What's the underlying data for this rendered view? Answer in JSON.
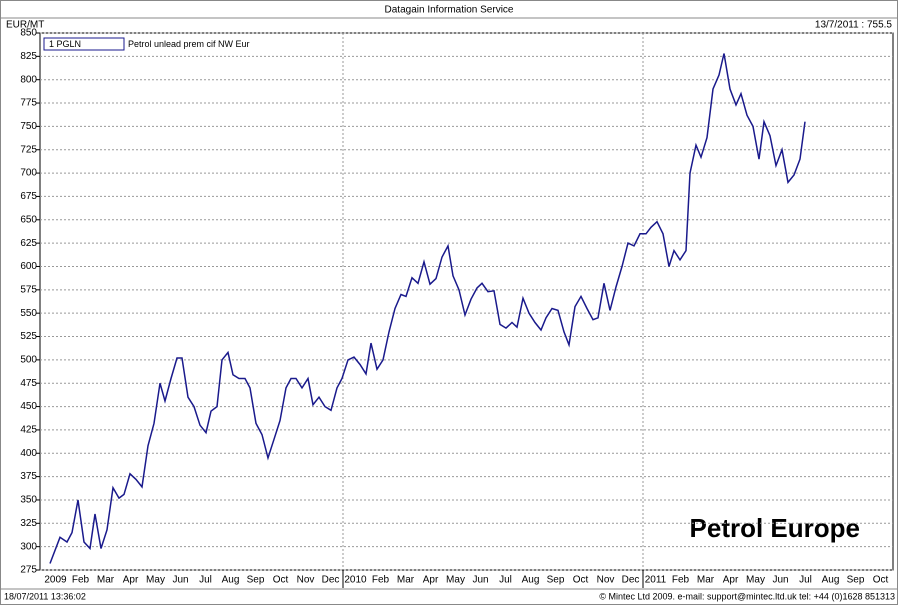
{
  "header": {
    "title": "Datagain Information Service",
    "unit": "EUR/MT",
    "last": "13/7/2011 :   755.5"
  },
  "footer": {
    "timestamp": "18/07/2011 13:36:02",
    "copyright": "© Mintec Ltd 2009. e-mail: support@mintec.ltd.uk tel: +44 (0)1628 851313"
  },
  "chart_data": {
    "type": "line",
    "annotation": "Petrol Europe",
    "legend": {
      "code": "1 PGLN"
    },
    "ylim": [
      275,
      850
    ],
    "yticks": [
      275,
      300,
      325,
      350,
      375,
      400,
      425,
      450,
      475,
      500,
      525,
      550,
      575,
      600,
      625,
      650,
      675,
      700,
      725,
      750,
      775,
      800,
      825,
      850
    ],
    "xlim": [
      0,
      34
    ],
    "xticks": [
      {
        "value": 0.5,
        "label": "2009"
      },
      {
        "value": 1.5,
        "label": "Feb"
      },
      {
        "value": 2.5,
        "label": "Mar"
      },
      {
        "value": 3.5,
        "label": "Apr"
      },
      {
        "value": 4.5,
        "label": "May"
      },
      {
        "value": 5.5,
        "label": "Jun"
      },
      {
        "value": 6.5,
        "label": "Jul"
      },
      {
        "value": 7.5,
        "label": "Aug"
      },
      {
        "value": 8.5,
        "label": "Sep"
      },
      {
        "value": 9.5,
        "label": "Oct"
      },
      {
        "value": 10.5,
        "label": "Nov"
      },
      {
        "value": 11.5,
        "label": "Dec"
      },
      {
        "value": 12.5,
        "label": "2010"
      },
      {
        "value": 13.5,
        "label": "Feb"
      },
      {
        "value": 14.5,
        "label": "Mar"
      },
      {
        "value": 15.5,
        "label": "Apr"
      },
      {
        "value": 16.5,
        "label": "May"
      },
      {
        "value": 17.5,
        "label": "Jun"
      },
      {
        "value": 18.5,
        "label": "Jul"
      },
      {
        "value": 19.5,
        "label": "Aug"
      },
      {
        "value": 20.5,
        "label": "Sep"
      },
      {
        "value": 21.5,
        "label": "Oct"
      },
      {
        "value": 22.5,
        "label": "Nov"
      },
      {
        "value": 23.5,
        "label": "Dec"
      },
      {
        "value": 24.5,
        "label": "2011"
      },
      {
        "value": 25.5,
        "label": "Feb"
      },
      {
        "value": 26.5,
        "label": "Mar"
      },
      {
        "value": 27.5,
        "label": "Apr"
      },
      {
        "value": 28.5,
        "label": "May"
      },
      {
        "value": 29.5,
        "label": "Jun"
      },
      {
        "value": 30.5,
        "label": "Jul"
      },
      {
        "value": 31.5,
        "label": "Aug"
      },
      {
        "value": 32.5,
        "label": "Sep"
      },
      {
        "value": 33.5,
        "label": "Oct"
      }
    ],
    "xgrid": [
      12,
      24
    ],
    "grid": true,
    "series": [
      {
        "name": "Petrol unlead prem cif NW Eur",
        "color": "#1a1a8c",
        "x": [
          0.28,
          0.68,
          0.96,
          1.16,
          1.4,
          1.64,
          1.88,
          2.08,
          2.32,
          2.56,
          2.8,
          3.04,
          3.24,
          3.48,
          3.72,
          3.96,
          4.2,
          4.44,
          4.68,
          4.88,
          5.12,
          5.36,
          5.56,
          5.8,
          6.04,
          6.28,
          6.52,
          6.72,
          6.96,
          7.16,
          7.4,
          7.6,
          7.84,
          8.08,
          8.28,
          8.52,
          8.76,
          9,
          9.24,
          9.48,
          9.72,
          9.92,
          10.12,
          10.36,
          10.6,
          10.8,
          11.04,
          11.28,
          11.52,
          11.76,
          11.96,
          12.2,
          12.44,
          12.68,
          12.92,
          13.12,
          13.36,
          13.6,
          13.84,
          14.08,
          14.32,
          14.52,
          14.76,
          15,
          15.24,
          15.48,
          15.72,
          15.96,
          16.2,
          16.4,
          16.64,
          16.88,
          17.12,
          17.36,
          17.56,
          17.8,
          18.04,
          18.28,
          18.52,
          18.76,
          18.96,
          19.2,
          19.44,
          19.68,
          19.92,
          20.12,
          20.36,
          20.6,
          20.84,
          21.04,
          21.28,
          21.52,
          21.76,
          22,
          22.2,
          22.44,
          22.68,
          22.92,
          23.16,
          23.4,
          23.64,
          23.88,
          24.12,
          24.32,
          24.56,
          24.8,
          25.04,
          25.24,
          25.48,
          25.72,
          25.88,
          26.12,
          26.32,
          26.56,
          26.8,
          27.04,
          27.24,
          27.48,
          27.72,
          27.92,
          28.16,
          28.4,
          28.64,
          28.84,
          29.08,
          29.32,
          29.56,
          29.8,
          30.04,
          30.28,
          30.48
        ],
        "values": [
          282,
          310,
          305,
          315,
          350,
          305,
          298,
          335,
          298,
          318,
          363,
          352,
          356,
          378,
          372,
          364,
          408,
          432,
          475,
          456,
          480,
          502,
          502,
          460,
          450,
          430,
          422,
          445,
          450,
          500,
          508,
          484,
          480,
          480,
          470,
          432,
          420,
          395,
          415,
          435,
          470,
          480,
          480,
          470,
          480,
          452,
          460,
          450,
          446,
          470,
          480,
          500,
          503,
          495,
          485,
          518,
          490,
          500,
          530,
          555,
          570,
          568,
          588,
          582,
          605,
          581,
          587,
          610,
          622,
          590,
          575,
          548,
          565,
          577,
          582,
          573,
          574,
          538,
          534,
          540,
          535,
          566,
          550,
          540,
          532,
          545,
          555,
          553,
          530,
          516,
          557,
          568,
          555,
          543,
          545,
          582,
          553,
          578,
          600,
          625,
          622,
          635,
          635,
          642,
          648,
          635,
          600,
          617,
          607,
          617,
          700,
          730,
          717,
          738,
          790,
          805,
          828,
          790,
          773,
          785,
          762,
          750,
          715,
          755,
          740,
          708,
          725,
          690,
          698,
          715,
          755
        ]
      }
    ]
  }
}
